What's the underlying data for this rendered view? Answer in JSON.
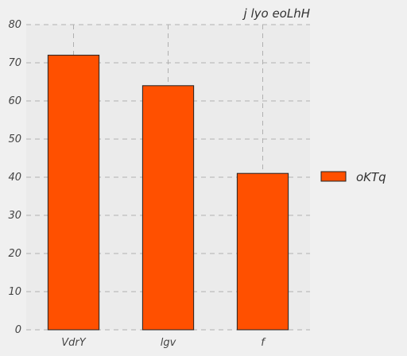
{
  "chart_data": {
    "type": "bar",
    "title": "j lyo eoLhH",
    "categories": [
      "VdrY",
      "lgv",
      "f"
    ],
    "series": [
      {
        "name": "oKTq",
        "values": [
          72,
          64,
          41
        ]
      }
    ],
    "ylim": [
      0,
      80
    ],
    "yticks": [
      0,
      10,
      20,
      30,
      40,
      50,
      60,
      70,
      80
    ],
    "grid": true,
    "legend_position": "right",
    "colors": {
      "bar": "#ff5000",
      "grid": "#b0b0b0",
      "plot_bg": "#ebebeb",
      "page_bg": "#f0f0f0"
    }
  }
}
